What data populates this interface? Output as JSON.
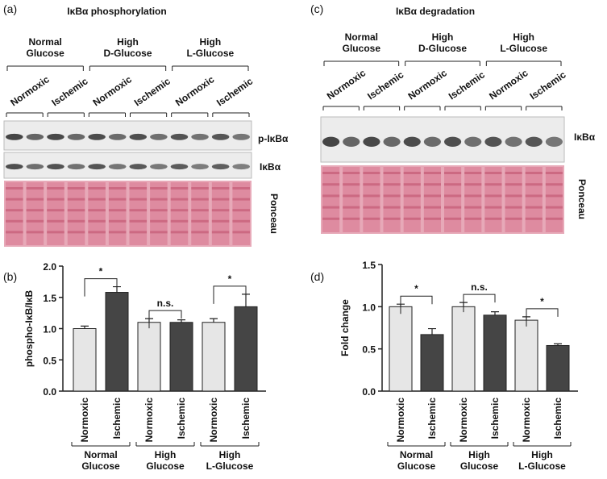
{
  "panel_labels": [
    "(a)",
    "(b)",
    "(c)",
    "(d)"
  ],
  "blots": [
    {
      "title": "IκBα phosphorylation",
      "groups": [
        [
          "Normal",
          "Glucose"
        ],
        [
          "High",
          "D-Glucose"
        ],
        [
          "High",
          "L-Glucose"
        ]
      ],
      "conditions": [
        "Normoxic",
        "Ischemic",
        "Normoxic",
        "Ischemic",
        "Normoxic",
        "Ischemic"
      ],
      "row_labels": [
        "p-IκBα",
        "IκBα",
        "Ponceau"
      ]
    },
    {
      "title": "IκBα degradation",
      "groups": [
        [
          "Normal",
          "Glucose"
        ],
        [
          "High",
          "D-Glucose"
        ],
        [
          "High",
          "L-Glucose"
        ]
      ],
      "conditions": [
        "Normoxic",
        "Ischemic",
        "Normoxic",
        "Ischemic",
        "Normoxic",
        "Ischemic"
      ],
      "row_labels": [
        "IκBα",
        "Ponceau"
      ]
    }
  ],
  "chart_data": [
    {
      "type": "bar",
      "y_label": "phospho-IκB/IκB",
      "categories": [
        "Normoxic",
        "Ischemic",
        "Normoxic",
        "Ischemic",
        "Normoxic",
        "Ischemic"
      ],
      "groups": [
        [
          "Normal",
          "Glucose"
        ],
        [
          "High",
          "Glucose"
        ],
        [
          "High",
          "L-Glucose"
        ]
      ],
      "values": [
        1.0,
        1.58,
        1.1,
        1.1,
        1.1,
        1.35
      ],
      "errors": [
        0.04,
        0.09,
        0.06,
        0.04,
        0.06,
        0.2
      ],
      "colors": [
        "#e6e6e6",
        "#454545"
      ],
      "significance": [
        "*",
        "n.s.",
        "*"
      ],
      "ylim": [
        0,
        2
      ],
      "yticks": [
        {
          "value": 0,
          "label": "0.0"
        },
        {
          "value": 0.5,
          "label": "0.5"
        },
        {
          "value": 1,
          "label": "1.0"
        },
        {
          "value": 1.5,
          "label": "1.5"
        },
        {
          "value": 2,
          "label": "2.0"
        }
      ]
    },
    {
      "type": "bar",
      "y_label": "Fold change",
      "categories": [
        "Normoxic",
        "Ischemic",
        "Normoxic",
        "Ischemic",
        "Normoxic",
        "Ischemic"
      ],
      "groups": [
        [
          "Normal",
          "Glucose"
        ],
        [
          "High",
          "Glucose"
        ],
        [
          "High",
          "L-Glucose"
        ]
      ],
      "values": [
        1.0,
        0.67,
        1.0,
        0.9,
        0.84,
        0.54
      ],
      "errors": [
        0.03,
        0.07,
        0.05,
        0.04,
        0.04,
        0.02
      ],
      "colors": [
        "#e6e6e6",
        "#454545"
      ],
      "significance": [
        "*",
        "n.s.",
        "*"
      ],
      "ylim": [
        0,
        1.5
      ],
      "yticks": [
        {
          "value": 0,
          "label": "0.0"
        },
        {
          "value": 0.5,
          "label": "0.5"
        },
        {
          "value": 1,
          "label": "1.0"
        },
        {
          "value": 1.5,
          "label": "1.5"
        }
      ]
    }
  ]
}
